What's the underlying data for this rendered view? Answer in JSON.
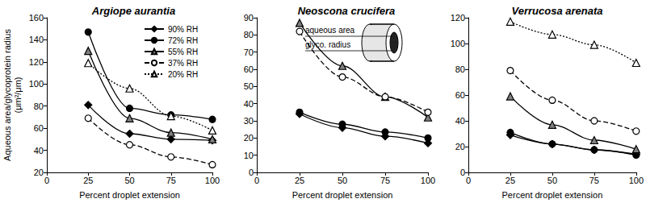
{
  "chart_data": [
    {
      "type": "line",
      "title": "Argiope aurantia",
      "xlabel": "Percent droplet extension",
      "ylabel": [
        "Aqueous area/glycoprotein radius",
        "(μm²/μm)"
      ],
      "x": [
        25,
        50,
        75,
        100
      ],
      "xlim": [
        0,
        100
      ],
      "xticks": [
        0,
        25,
        50,
        75,
        100
      ],
      "ylim": [
        20,
        160
      ],
      "yticks": [
        20,
        40,
        60,
        80,
        100,
        120,
        140,
        160
      ],
      "grid": false,
      "legend": "upper right",
      "series": [
        {
          "name": "90% RH",
          "color": "#000000",
          "marker": "diamond",
          "line_style": "solid",
          "values": [
            81,
            55,
            50,
            49
          ]
        },
        {
          "name": "72% RH",
          "color": "#000000",
          "marker": "circle",
          "line_style": "solid",
          "values": [
            147,
            78,
            72,
            68
          ]
        },
        {
          "name": "55% RH",
          "color": "#000000",
          "marker": "half_triangle",
          "line_style": "solid",
          "values": [
            130,
            69,
            56,
            50
          ]
        },
        {
          "name": "37% RH",
          "color": "#000000",
          "marker": "open_circle",
          "line_style": "dashed",
          "values": [
            69,
            45,
            34,
            27
          ]
        },
        {
          "name": "20% RH",
          "color": "#000000",
          "marker": "open_triangle",
          "line_style": "dotted",
          "values": [
            119,
            96,
            71,
            58
          ]
        }
      ]
    },
    {
      "type": "line",
      "title": "Neoscona crucifera",
      "xlabel": "Percent droplet extension",
      "annotations": [
        "aqueous area",
        "glyco. radius"
      ],
      "x": [
        25,
        50,
        75,
        100
      ],
      "xlim": [
        0,
        100
      ],
      "xticks": [
        0,
        25,
        50,
        75,
        100
      ],
      "ylim": [
        0,
        90
      ],
      "yticks": [
        0,
        10,
        20,
        30,
        40,
        50,
        60,
        70,
        80,
        90
      ],
      "grid": false,
      "series": [
        {
          "name": "90% RH",
          "color": "#000000",
          "marker": "diamond",
          "line_style": "solid",
          "values": [
            34,
            26,
            21,
            17
          ]
        },
        {
          "name": "72% RH",
          "color": "#000000",
          "marker": "circle",
          "line_style": "solid",
          "values": [
            35,
            28,
            23.5,
            20
          ]
        },
        {
          "name": "55% RH",
          "color": "#000000",
          "marker": "half_triangle",
          "line_style": "solid",
          "values": [
            87,
            62,
            44,
            32
          ]
        },
        {
          "name": "37% RH",
          "color": "#000000",
          "marker": "open_circle",
          "line_style": "dashed",
          "values": [
            82,
            55.5,
            44,
            35
          ]
        }
      ]
    },
    {
      "type": "line",
      "title": "Verrucosa arenata",
      "xlabel": "Percent droplet extension",
      "x": [
        25,
        50,
        75,
        100
      ],
      "xlim": [
        0,
        100
      ],
      "xticks": [
        0,
        25,
        50,
        75,
        100
      ],
      "ylim": [
        0,
        120
      ],
      "yticks": [
        0,
        20,
        40,
        60,
        80,
        100,
        120
      ],
      "grid": false,
      "series": [
        {
          "name": "90% RH",
          "color": "#000000",
          "marker": "diamond",
          "line_style": "solid",
          "values": [
            29,
            22,
            17.5,
            14
          ]
        },
        {
          "name": "72% RH",
          "color": "#000000",
          "marker": "circle",
          "line_style": "solid",
          "values": [
            31,
            22,
            17.5,
            13.5
          ]
        },
        {
          "name": "55% RH",
          "color": "#000000",
          "marker": "half_triangle",
          "line_style": "solid",
          "values": [
            59,
            37,
            25,
            18
          ]
        },
        {
          "name": "37% RH",
          "color": "#000000",
          "marker": "open_circle",
          "line_style": "dashed",
          "values": [
            79,
            56,
            40,
            32
          ]
        },
        {
          "name": "20% RH",
          "color": "#000000",
          "marker": "open_triangle",
          "line_style": "dotted",
          "values": [
            117,
            107,
            99,
            85
          ]
        }
      ]
    }
  ]
}
